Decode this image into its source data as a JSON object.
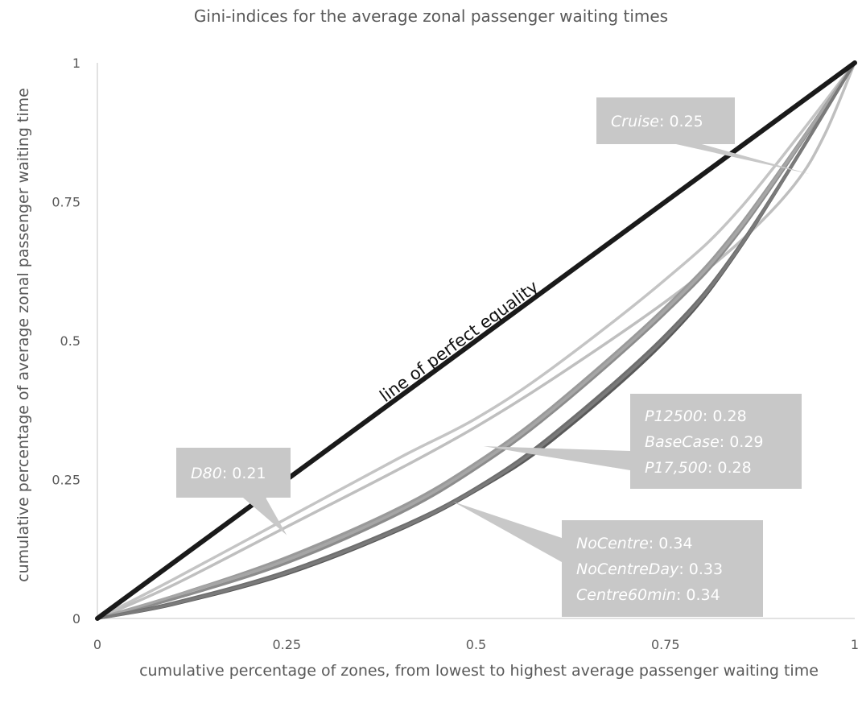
{
  "chart_data": {
    "type": "line",
    "title": "Gini-indices for the average zonal passenger waiting times",
    "xlabel": "cumulative percentage of zones, from lowest to highest average passenger waiting time",
    "ylabel": "cumulative percentage of average zonal passenger waiting time",
    "xlim": [
      0,
      1
    ],
    "ylim": [
      0,
      1
    ],
    "x_ticks": [
      "0",
      "0.25",
      "0.5",
      "0.75",
      "1"
    ],
    "y_ticks": [
      "0",
      "0.25",
      "0.5",
      "0.75",
      "1"
    ],
    "grid": false,
    "equality_line_label": "line of perfect equality",
    "series": [
      {
        "name": "line of perfect equality",
        "color": "#1a1a1a",
        "x": [
          0,
          1
        ],
        "y": [
          0,
          1
        ]
      },
      {
        "name": "D80",
        "color": "#c4c4c4",
        "x": [
          0,
          0.1,
          0.25,
          0.4,
          0.5,
          0.6,
          0.75,
          0.85,
          1
        ],
        "y": [
          0,
          0.07,
          0.18,
          0.29,
          0.36,
          0.45,
          0.61,
          0.74,
          1
        ]
      },
      {
        "name": "Cruise",
        "color": "#bfbfbf",
        "x": [
          0,
          0.1,
          0.25,
          0.4,
          0.5,
          0.6,
          0.75,
          0.85,
          0.92,
          0.96,
          1
        ],
        "y": [
          0,
          0.06,
          0.165,
          0.27,
          0.345,
          0.43,
          0.57,
          0.68,
          0.78,
          0.87,
          1
        ]
      },
      {
        "name": "P12500",
        "color": "#9a9a9a",
        "x": [
          0,
          0.1,
          0.25,
          0.4,
          0.5,
          0.6,
          0.75,
          0.85,
          1
        ],
        "y": [
          0,
          0.04,
          0.11,
          0.2,
          0.28,
          0.38,
          0.56,
          0.71,
          1
        ]
      },
      {
        "name": "BaseCase",
        "color": "#8c8c8c",
        "x": [
          0,
          0.1,
          0.25,
          0.4,
          0.5,
          0.6,
          0.75,
          0.85,
          1
        ],
        "y": [
          0,
          0.035,
          0.1,
          0.19,
          0.27,
          0.37,
          0.55,
          0.7,
          1
        ]
      },
      {
        "name": "P17,500",
        "color": "#a6a6a6",
        "x": [
          0,
          0.1,
          0.25,
          0.4,
          0.5,
          0.6,
          0.75,
          0.85,
          1
        ],
        "y": [
          0,
          0.04,
          0.105,
          0.195,
          0.275,
          0.375,
          0.555,
          0.705,
          1
        ]
      },
      {
        "name": "NoCentre",
        "color": "#595959",
        "x": [
          0,
          0.1,
          0.25,
          0.4,
          0.5,
          0.6,
          0.75,
          0.85,
          1
        ],
        "y": [
          0,
          0.025,
          0.08,
          0.16,
          0.23,
          0.32,
          0.5,
          0.67,
          1
        ]
      },
      {
        "name": "NoCentreDay",
        "color": "#6e6e6e",
        "x": [
          0,
          0.1,
          0.25,
          0.4,
          0.5,
          0.6,
          0.75,
          0.85,
          1
        ],
        "y": [
          0,
          0.028,
          0.085,
          0.165,
          0.235,
          0.33,
          0.51,
          0.675,
          1
        ]
      },
      {
        "name": "Centre60min",
        "color": "#7a7a7a",
        "x": [
          0,
          0.1,
          0.25,
          0.4,
          0.5,
          0.6,
          0.75,
          0.85,
          1
        ],
        "y": [
          0,
          0.026,
          0.082,
          0.162,
          0.232,
          0.325,
          0.505,
          0.672,
          1
        ]
      }
    ],
    "annotations": [
      {
        "lines": [
          {
            "name": "Cruise",
            "value": "0.25"
          }
        ],
        "points_to": [
          0.94,
          0.8
        ]
      },
      {
        "lines": [
          {
            "name": "D80",
            "value": "0.21"
          }
        ],
        "points_to": [
          0.25,
          0.15
        ]
      },
      {
        "lines": [
          {
            "name": "P12500",
            "value": "0.28"
          },
          {
            "name": "BaseCase",
            "value": "0.29"
          },
          {
            "name": "P17,500",
            "value": "0.28"
          }
        ],
        "points_to": [
          0.51,
          0.31
        ]
      },
      {
        "lines": [
          {
            "name": "NoCentre",
            "value": "0.34"
          },
          {
            "name": "NoCentreDay",
            "value": "0.33"
          },
          {
            "name": "Centre60min",
            "value": "0.34"
          }
        ],
        "points_to": [
          0.47,
          0.21
        ]
      }
    ],
    "callout_color": "#c8c8c8"
  }
}
